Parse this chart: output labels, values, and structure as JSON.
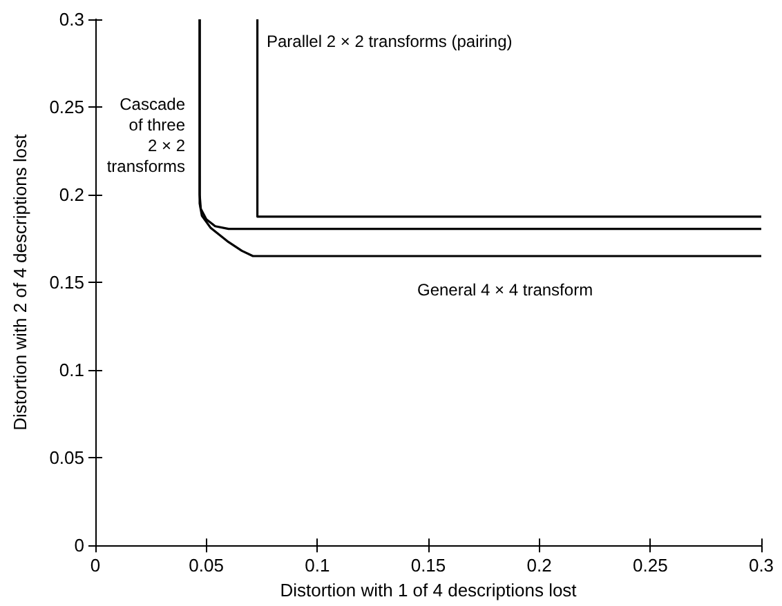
{
  "chart_data": {
    "type": "line",
    "xlabel": "Distortion with 1 of 4 descriptions lost",
    "ylabel": "Distortion with 2 of 4 descriptions lost",
    "xlim": [
      0,
      0.3
    ],
    "ylim": [
      0,
      0.3
    ],
    "xticks": [
      0,
      0.05,
      0.1,
      0.15,
      0.2,
      0.25,
      0.3
    ],
    "yticks": [
      0,
      0.05,
      0.1,
      0.15,
      0.2,
      0.25,
      0.3
    ],
    "marker": "none",
    "line_style": "solid",
    "series": [
      {
        "color": "#000000",
        "x": [
          0.073,
          0.073,
          0.3
        ],
        "values": [
          0.3,
          0.1875,
          0.1875
        ]
      },
      {
        "color": "#000000",
        "x": [
          0.047,
          0.047,
          0.0475,
          0.05,
          0.054,
          0.06,
          0.3
        ],
        "values": [
          0.3,
          0.2,
          0.192,
          0.186,
          0.182,
          0.1805,
          0.1805
        ]
      },
      {
        "color": "#000000",
        "x": [
          0.047,
          0.047,
          0.048,
          0.052,
          0.06,
          0.066,
          0.071,
          0.3
        ],
        "values": [
          0.3,
          0.195,
          0.188,
          0.181,
          0.173,
          0.168,
          0.165,
          0.165
        ]
      }
    ],
    "annotations": [
      "Parallel 2 × 2 transforms (pairing)",
      "Cascade\nof three\n2 × 2\ntransforms",
      "General 4 × 4 transform"
    ]
  }
}
